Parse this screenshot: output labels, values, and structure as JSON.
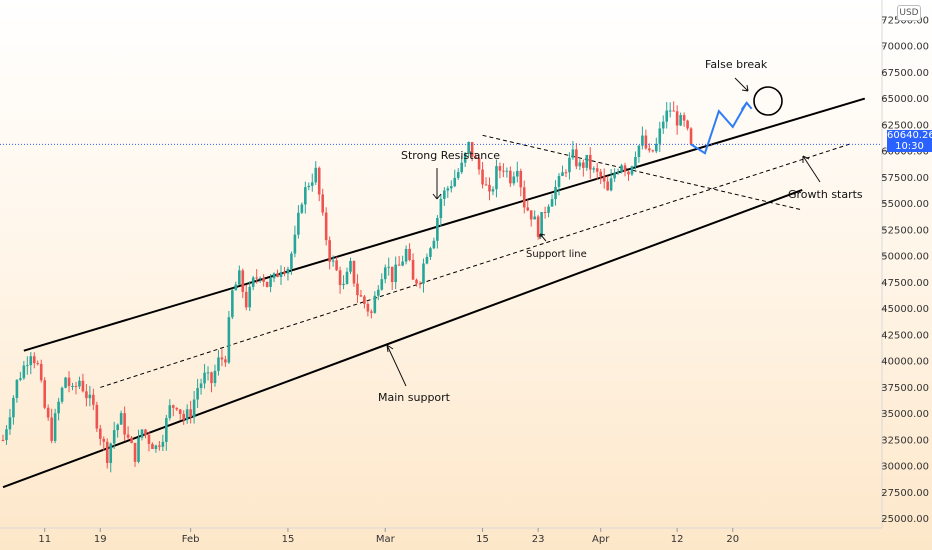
{
  "currency": "USD",
  "last_price": {
    "value": 60640.26,
    "label": "60640.26",
    "countdown": "10:30"
  },
  "annotations": {
    "false_break": "False break",
    "strong_resistance": "Strong Resistance",
    "support_line": "Support line",
    "main_support": "Main support",
    "growth_starts": "Growth starts"
  },
  "chart_data": {
    "type": "candlestick",
    "ylim": [
      23500,
      72800
    ],
    "y_ticks": [
      25000,
      27500,
      30000,
      32500,
      35000,
      37500,
      40000,
      42500,
      45000,
      47500,
      50000,
      52500,
      55000,
      57500,
      60000,
      62500,
      65000,
      67500,
      70000,
      72500
    ],
    "y_tick_labels": [
      "25000.00",
      "27500.00",
      "30000.00",
      "32500.00",
      "35000.00",
      "37500.00",
      "40000.00",
      "42500.00",
      "45000.00",
      "47500.00",
      "50000.00",
      "52500.00",
      "55000.00",
      "57500.00",
      "60000.00",
      "62500.00",
      "65000.00",
      "67500.00",
      "70000.00",
      "72500.00"
    ],
    "x_tick_labels": [
      {
        "label": "11",
        "date": "Jan 11"
      },
      {
        "label": "19",
        "date": "Jan 19"
      },
      {
        "label": "Feb",
        "date": "Feb 1"
      },
      {
        "label": "15",
        "date": "Feb 15"
      },
      {
        "label": "Mar",
        "date": "Mar 1"
      },
      {
        "label": "15",
        "date": "Mar 15"
      },
      {
        "label": "23",
        "date": "Mar 23"
      },
      {
        "label": "Apr",
        "date": "Apr 1"
      },
      {
        "label": "12",
        "date": "Apr 12"
      },
      {
        "label": "20",
        "date": "Apr 20"
      }
    ],
    "x_tick_days": [
      6,
      14,
      27,
      41,
      55,
      69,
      77,
      86,
      97,
      105
    ],
    "close_path": [
      [
        0,
        32500
      ],
      [
        2,
        38000
      ],
      [
        4,
        41000
      ],
      [
        5,
        39500
      ],
      [
        6,
        35500
      ],
      [
        7,
        33000
      ],
      [
        8,
        36000
      ],
      [
        9,
        38500
      ],
      [
        10,
        37000
      ],
      [
        11,
        38200
      ],
      [
        12,
        36800
      ],
      [
        13,
        35500
      ],
      [
        14,
        33000
      ],
      [
        15,
        31000
      ],
      [
        16,
        33500
      ],
      [
        17,
        34500
      ],
      [
        18,
        32500
      ],
      [
        19,
        31000
      ],
      [
        20,
        33500
      ],
      [
        21,
        32500
      ],
      [
        22,
        31800
      ],
      [
        23,
        33000
      ],
      [
        24,
        35500
      ],
      [
        25,
        36000
      ],
      [
        26,
        34500
      ],
      [
        27,
        35200
      ],
      [
        28,
        37500
      ],
      [
        29,
        38500
      ],
      [
        30,
        38000
      ],
      [
        31,
        40000
      ],
      [
        32,
        40500
      ],
      [
        33,
        46500
      ],
      [
        34,
        48000
      ],
      [
        35,
        45500
      ],
      [
        36,
        47500
      ],
      [
        37,
        48500
      ],
      [
        38,
        47300
      ],
      [
        39,
        47800
      ],
      [
        40,
        49000
      ],
      [
        41,
        49000
      ],
      [
        42,
        51500
      ],
      [
        43,
        55500
      ],
      [
        44,
        57000
      ],
      [
        45,
        58000
      ],
      [
        46,
        53500
      ],
      [
        47,
        50000
      ],
      [
        48,
        48500
      ],
      [
        49,
        47000
      ],
      [
        50,
        49000
      ],
      [
        51,
        46500
      ],
      [
        52,
        45500
      ],
      [
        53,
        44500
      ],
      [
        54,
        47500
      ],
      [
        55,
        49500
      ],
      [
        56,
        48000
      ],
      [
        57,
        49000
      ],
      [
        58,
        50500
      ],
      [
        59,
        47500
      ],
      [
        60,
        48000
      ],
      [
        61,
        50500
      ],
      [
        62,
        52000
      ],
      [
        63,
        55500
      ],
      [
        64,
        56500
      ],
      [
        65,
        57500
      ],
      [
        66,
        58500
      ],
      [
        67,
        60500
      ],
      [
        68,
        59000
      ],
      [
        69,
        57500
      ],
      [
        70,
        55500
      ],
      [
        71,
        58000
      ],
      [
        72,
        58500
      ],
      [
        73,
        57500
      ],
      [
        74,
        58800
      ],
      [
        75,
        55000
      ],
      [
        76,
        54000
      ],
      [
        77,
        52500
      ],
      [
        78,
        54500
      ],
      [
        79,
        56000
      ],
      [
        80,
        57000
      ],
      [
        81,
        58500
      ],
      [
        82,
        59500
      ],
      [
        83,
        58500
      ],
      [
        84,
        59000
      ],
      [
        85,
        58000
      ],
      [
        86,
        57500
      ],
      [
        87,
        56000
      ],
      [
        88,
        58000
      ],
      [
        89,
        59000
      ],
      [
        90,
        58000
      ],
      [
        91,
        60000
      ],
      [
        92,
        61000
      ],
      [
        93,
        59500
      ],
      [
        94,
        60500
      ],
      [
        95,
        63000
      ],
      [
        96,
        64000
      ],
      [
        97,
        63000
      ],
      [
        98,
        62500
      ],
      [
        99,
        60640
      ]
    ],
    "trendlines": [
      {
        "name": "resistance",
        "points": [
          [
            3,
            41000
          ],
          [
            124,
            65000
          ]
        ]
      },
      {
        "name": "main-support",
        "points": [
          [
            0,
            28000
          ],
          [
            115,
            56300
          ]
        ]
      },
      {
        "name": "support-line",
        "points": [
          [
            14,
            37500
          ],
          [
            122,
            60700
          ]
        ],
        "dashed": true
      },
      {
        "name": "diagonal-down",
        "points": [
          [
            69,
            61500
          ],
          [
            115,
            54400
          ]
        ],
        "dashed": true
      }
    ],
    "projection": [
      [
        99,
        60640
      ],
      [
        101,
        59800
      ],
      [
        103,
        63800
      ],
      [
        105,
        62300
      ],
      [
        107,
        64600
      ]
    ],
    "last_price_line": 60640
  }
}
